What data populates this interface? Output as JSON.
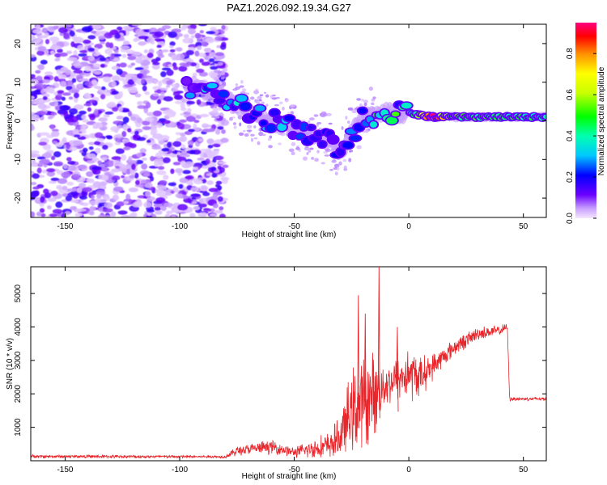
{
  "title": "PAZ1.2026.092.19.34.G27",
  "colors": {
    "snr_line": "#e8252a",
    "spectrogram_base": "#7a1df0"
  },
  "chart_data": [
    {
      "type": "heatmap",
      "name": "spectrogram",
      "xlabel": "Height of straight line (km)",
      "ylabel": "Frequency (Hz)",
      "xlim": [
        -165,
        60
      ],
      "ylim": [
        -25,
        25
      ],
      "xticks": [
        -150,
        -100,
        -50,
        0,
        50
      ],
      "yticks": [
        -20,
        -10,
        0,
        10,
        20
      ],
      "colorbar": {
        "label": "Normalized spectral amplitude",
        "range": [
          0,
          0.95
        ],
        "ticks": [
          0.0,
          0.2,
          0.4,
          0.6,
          0.8
        ]
      },
      "description_points": {
        "ridge_x": [
          -95,
          -85,
          -75,
          -65,
          -55,
          -45,
          -35,
          -30,
          -20,
          -10,
          0,
          10,
          20,
          30,
          40,
          50,
          60
        ],
        "ridge_freq": [
          9,
          7,
          4,
          1,
          -1,
          -3,
          -5,
          -8,
          1,
          2,
          2,
          1,
          1,
          1,
          1,
          1,
          1
        ],
        "ridge_amplitude": [
          0.25,
          0.3,
          0.3,
          0.25,
          0.25,
          0.22,
          0.2,
          0.15,
          0.3,
          0.45,
          0.4,
          0.9,
          0.6,
          0.5,
          0.5,
          0.45,
          0.45
        ]
      }
    },
    {
      "type": "line",
      "name": "snr",
      "xlabel": "Height of straight line (km)",
      "ylabel": "SNR (10 * v/v)",
      "xlim": [
        -165,
        60
      ],
      "ylim": [
        0,
        5800
      ],
      "xticks": [
        -150,
        -100,
        -50,
        0,
        50
      ],
      "yticks": [
        1000,
        2000,
        3000,
        4000,
        5000
      ],
      "envelope": {
        "x": [
          -165,
          -80,
          -75,
          -60,
          -50,
          -35,
          -30,
          -25,
          -20,
          -15,
          -10,
          0,
          5,
          10,
          15,
          20,
          30,
          40,
          43,
          44,
          50,
          60
        ],
        "mean": [
          130,
          120,
          300,
          420,
          250,
          450,
          700,
          1500,
          1700,
          2000,
          2300,
          2600,
          2500,
          2800,
          3100,
          3400,
          3800,
          3900,
          4000,
          1850,
          1850,
          1850
        ],
        "noise": [
          50,
          40,
          150,
          200,
          150,
          400,
          600,
          1200,
          1400,
          1200,
          600,
          800,
          600,
          400,
          300,
          250,
          200,
          150,
          100,
          60,
          60,
          60
        ]
      },
      "peaks": [
        {
          "x": -22,
          "y": 4950
        },
        {
          "x": -19,
          "y": 4400
        },
        {
          "x": -13,
          "y": 5850
        },
        {
          "x": -5,
          "y": 4000
        }
      ]
    }
  ]
}
